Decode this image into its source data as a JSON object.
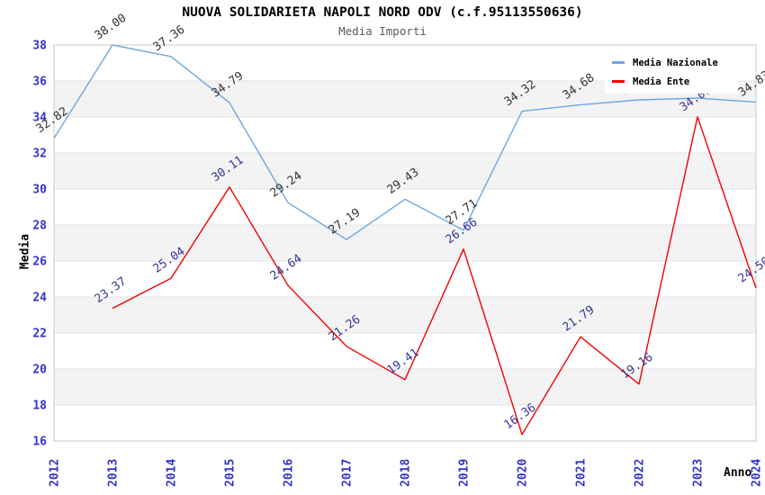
{
  "header": {
    "title": "NUOVA SOLIDARIETA NAPOLI NORD ODV (c.f.95113550636)",
    "subtitle": "Media Importi"
  },
  "chart_data": {
    "type": "line",
    "title": "NUOVA SOLIDARIETA NAPOLI NORD ODV (c.f.95113550636)",
    "subtitle": "Media Importi",
    "xlabel": "Anno",
    "ylabel": "Media",
    "categories": [
      "2012",
      "2013",
      "2014",
      "2015",
      "2016",
      "2017",
      "2018",
      "2019",
      "2020",
      "2021",
      "2022",
      "2023",
      "2024"
    ],
    "series": [
      {
        "name": "Media Nazionale",
        "color": "#6EA6E2",
        "label_color": "#333333",
        "values": [
          32.82,
          38.0,
          37.36,
          34.79,
          29.24,
          27.19,
          29.43,
          27.71,
          34.32,
          34.68,
          34.95,
          35.05,
          34.83
        ]
      },
      {
        "name": "Media Ente",
        "color": "#F40000",
        "label_color": "#333399",
        "values": [
          null,
          23.37,
          25.04,
          30.11,
          24.64,
          21.26,
          19.41,
          26.66,
          16.36,
          21.79,
          19.16,
          34.01,
          24.5
        ]
      }
    ],
    "ylim": [
      16,
      38
    ],
    "ytick_step": 2,
    "grid": "horizontal",
    "band_fill": "#f3f3f3",
    "gridline_color": "#e3e3e3",
    "frame_color": "#c9c9c9",
    "axis_tick_color": "#3333cc",
    "legend_position": "top-right"
  }
}
